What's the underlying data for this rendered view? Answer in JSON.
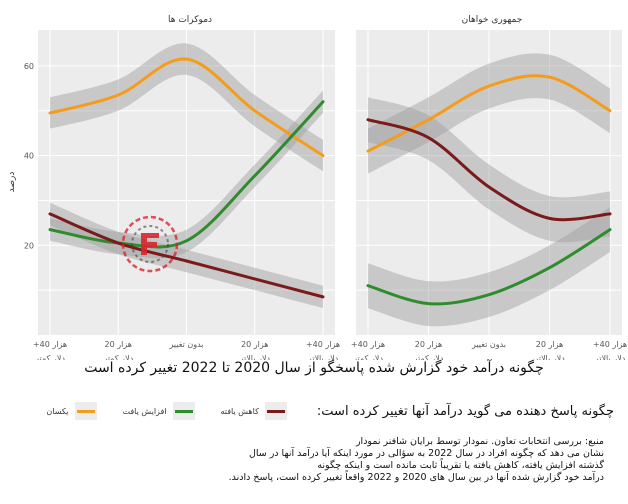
{
  "chart_data": {
    "type": "line",
    "title": "چگونه درآمد خود گزارش شده پاسخگو از سال 2020 تا 2022 تغییر کرده است",
    "ylabel": "درصد",
    "ylim": [
      0,
      68
    ],
    "yticks": [
      20,
      40,
      60
    ],
    "grid": true,
    "categories": [
      "+40 هزار دلار کمتر",
      "20 هزار دلار کمتر",
      "بدون تغییر",
      "20 هزار دلار بالاتر",
      "+40 هزار دلار بالاتر"
    ],
    "tick_labels": [
      [
        "+40 هزار",
        "دلار کمتر"
      ],
      [
        "20 هزار",
        "دلار کمتر"
      ],
      [
        "بدون تغییر"
      ],
      [
        "20 هزار",
        "دلار بالاتر"
      ],
      [
        "+40 هزار",
        "دلار بالاتر"
      ]
    ],
    "legend": {
      "title": "چگونه پاسخ دهنده می گوید درآمد آنها تغییر کرده است:",
      "position": "bottom"
    },
    "series_colors": {
      "same": "#f59c1c",
      "increased": "#2e8b2e",
      "decreased": "#7a1a1a"
    },
    "facets": [
      {
        "label": "دموکرات ها",
        "series": [
          {
            "key": "same",
            "values": [
              49.5,
              53.5,
              61.5,
              50,
              40
            ],
            "band": 3.5
          },
          {
            "key": "increased",
            "values": [
              23.5,
              20.5,
              21,
              35.5,
              52
            ],
            "band": 2.5
          },
          {
            "key": "decreased",
            "values": [
              27,
              20.5,
              16.5,
              12.5,
              8.5
            ],
            "band": 2.5
          }
        ]
      },
      {
        "label": "جمهوری خواهان",
        "series": [
          {
            "key": "same",
            "values": [
              41,
              48,
              55.5,
              57.5,
              50
            ],
            "band": 5
          },
          {
            "key": "increased",
            "values": [
              11,
              7,
              9,
              15,
              23.5
            ],
            "band": 5
          },
          {
            "key": "decreased",
            "values": [
              48,
              44,
              33,
              26,
              27
            ],
            "band": 5
          }
        ]
      }
    ]
  },
  "legend_items": [
    {
      "key": "decreased",
      "label": "کاهش یافته",
      "color": "#7a1a1a"
    },
    {
      "key": "increased",
      "label": "افزایش یافت",
      "color": "#2e8b2e"
    },
    {
      "key": "same",
      "label": "یکسان",
      "color": "#f59c1c"
    }
  ],
  "source_lines": [
    "منبع: بررسی انتخابات تعاون. نمودار توسط برایان شافنر نمودار",
    "نشان می دهد که چگونه افراد در سال 2022 به سؤالی در مورد اینکه آیا درآمد آنها در سال",
    "گذشته افزایش یافته، کاهش یافته یا تقریباً ثابت مانده است و اینکه چگونه",
    "درآمد خود گزارش شده آنها در بین سال های 2020 و 2022 واقعاً تغییر کرده است، پاسخ دادند."
  ]
}
